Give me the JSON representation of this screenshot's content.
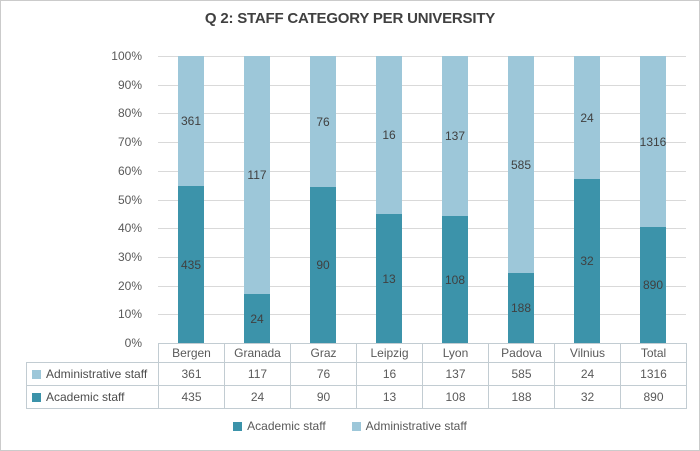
{
  "chart_data": {
    "type": "bar",
    "variant": "100-percent-stacked-column",
    "title": "Q 2: STAFF CATEGORY PER UNIVERSITY",
    "categories": [
      "Bergen",
      "Granada",
      "Graz",
      "Leipzig",
      "Lyon",
      "Padova",
      "Vilnius",
      "Total"
    ],
    "series": [
      {
        "name": "Academic staff",
        "color": "#3c93aa",
        "values": [
          435,
          24,
          90,
          13,
          108,
          188,
          32,
          890
        ]
      },
      {
        "name": "Administrative staff",
        "color": "#9dc7d9",
        "values": [
          361,
          117,
          76,
          16,
          137,
          585,
          24,
          1316
        ]
      }
    ],
    "y_ticks": [
      "100%",
      "90%",
      "80%",
      "70%",
      "60%",
      "50%",
      "40%",
      "30%",
      "20%",
      "10%",
      "0%"
    ],
    "ylim": [
      0,
      100
    ],
    "grid": true,
    "data_labels": true,
    "legend_position": "bottom",
    "data_table_shown": true,
    "table_row_order": [
      "Administrative staff",
      "Academic staff"
    ]
  },
  "style_colors": {
    "academic_series": "#3c93aa",
    "administrative_series": "#9dc7d9",
    "data_label_text": "#404040",
    "axis_text": "#595959"
  }
}
